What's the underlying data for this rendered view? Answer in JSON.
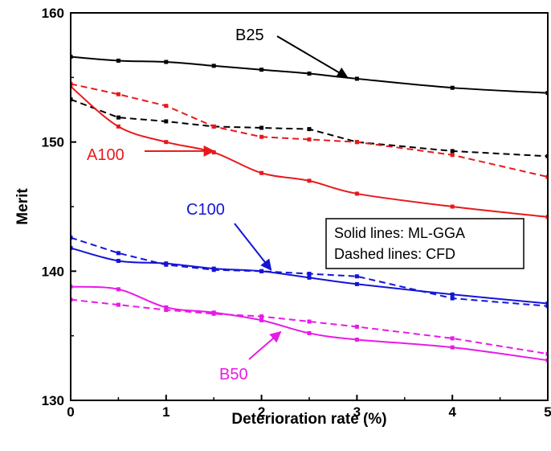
{
  "chart_data": {
    "type": "line",
    "xlabel": "Deterioration rate (%)",
    "ylabel": "Merit",
    "xlim": [
      0,
      5
    ],
    "ylim": [
      130,
      160
    ],
    "xticks": [
      "0",
      "1",
      "2",
      "3",
      "4",
      "5"
    ],
    "yticks": [
      "130",
      "140",
      "150",
      "160"
    ],
    "grid": false,
    "legend": {
      "placement": "center-right",
      "entries": [
        "Solid lines: ML-GGA",
        "Dashed lines: CFD"
      ]
    },
    "colors": {
      "B25": "#000000",
      "A100": "#e8191c",
      "C100": "#1414d8",
      "B50": "#e81ae8"
    },
    "x": [
      0,
      0.5,
      1,
      1.5,
      2,
      2.5,
      3,
      4,
      5
    ],
    "series": [
      {
        "name": "B25",
        "style": "solid",
        "color": "#000000",
        "values": [
          156.6,
          156.3,
          156.2,
          155.9,
          155.6,
          155.3,
          154.9,
          154.2,
          153.8
        ]
      },
      {
        "name": "B25",
        "style": "dashed",
        "color": "#000000",
        "values": [
          153.3,
          151.9,
          151.6,
          151.2,
          151.1,
          151.0,
          150.0,
          149.3,
          148.9
        ]
      },
      {
        "name": "A100",
        "style": "solid",
        "color": "#e8191c",
        "values": [
          154.3,
          151.2,
          150.0,
          149.2,
          147.6,
          147.0,
          146.0,
          145.0,
          144.2
        ]
      },
      {
        "name": "A100",
        "style": "dashed",
        "color": "#e8191c",
        "values": [
          154.5,
          153.7,
          152.8,
          151.2,
          150.4,
          150.2,
          150.0,
          149.0,
          147.3
        ]
      },
      {
        "name": "C100",
        "style": "solid",
        "color": "#1414d8",
        "values": [
          141.8,
          140.8,
          140.6,
          140.2,
          140.0,
          139.5,
          139.0,
          138.2,
          137.5
        ]
      },
      {
        "name": "C100",
        "style": "dashed",
        "color": "#1414d8",
        "values": [
          142.6,
          141.4,
          140.5,
          140.1,
          140.0,
          139.8,
          139.6,
          137.9,
          137.3
        ]
      },
      {
        "name": "B50",
        "style": "solid",
        "color": "#e81ae8",
        "values": [
          138.8,
          138.6,
          137.2,
          136.8,
          136.2,
          135.2,
          134.7,
          134.1,
          133.1
        ]
      },
      {
        "name": "B50",
        "style": "dashed",
        "color": "#e81ae8",
        "values": [
          137.8,
          137.4,
          137.0,
          136.7,
          136.5,
          136.1,
          135.7,
          134.8,
          133.6
        ]
      }
    ],
    "annotations": [
      {
        "text": "B25",
        "color": "#000000",
        "points_to": [
          2.9,
          155.0
        ]
      },
      {
        "text": "A100",
        "color": "#e8191c",
        "points_to": [
          1.5,
          149.3
        ]
      },
      {
        "text": "C100",
        "color": "#1414d8",
        "points_to": [
          2.1,
          140.1
        ]
      },
      {
        "text": "B50",
        "color": "#e81ae8",
        "points_to": [
          2.2,
          135.3
        ]
      }
    ]
  }
}
